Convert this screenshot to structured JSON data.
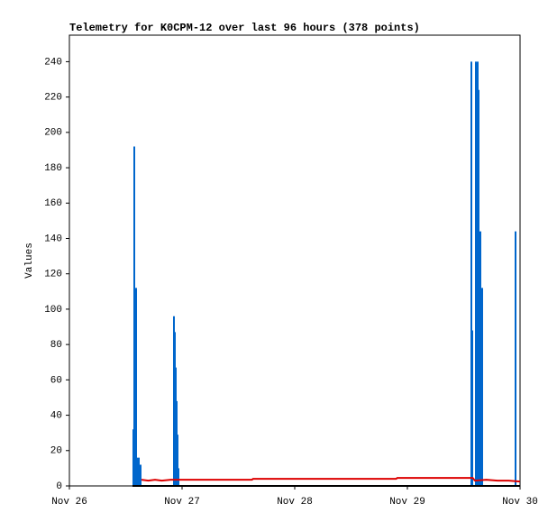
{
  "chart_data": {
    "type": "stem",
    "title": "Telemetry for K0CPM-12 over last 96 hours (378 points)",
    "y_label": "Values",
    "xlim": [
      26,
      30
    ],
    "xticks": [
      {
        "value": 26,
        "label": "Nov 26"
      },
      {
        "value": 27,
        "label": "Nov 27"
      },
      {
        "value": 28,
        "label": "Nov 28"
      },
      {
        "value": 29,
        "label": "Nov 29"
      },
      {
        "value": 30,
        "label": "Nov 30"
      }
    ],
    "ylim": [
      0,
      255
    ],
    "yticks": [
      0,
      20,
      40,
      60,
      80,
      100,
      120,
      140,
      160,
      180,
      200,
      220,
      240
    ],
    "series": [
      {
        "type": "stem",
        "color": "#0066cc",
        "x": [
          26.568,
          26.576,
          26.584,
          26.592,
          26.6,
          26.616,
          26.632,
          26.928,
          26.936,
          26.944,
          26.952,
          26.96,
          26.968,
          29.568,
          29.576,
          29.608,
          29.616,
          29.624,
          29.632,
          29.648,
          29.664,
          29.96
        ],
        "values": [
          32,
          192,
          32,
          112,
          16,
          16,
          12,
          96,
          87,
          67,
          48,
          29,
          10,
          240,
          88,
          240,
          120,
          240,
          224,
          144,
          112,
          144
        ]
      },
      {
        "type": "line",
        "color": "#dd0000",
        "x": [
          26.64,
          26.7,
          26.76,
          26.82,
          26.9,
          27.0,
          27.62,
          27.63,
          28.9,
          28.91,
          29.58,
          29.6,
          29.7,
          29.8,
          29.9,
          30.0
        ],
        "values": [
          3.5,
          3,
          3.5,
          3,
          3.5,
          3.5,
          3.5,
          4,
          4,
          4.5,
          4.5,
          3,
          3.5,
          3,
          3,
          2.5
        ]
      },
      {
        "type": "line",
        "color": "#000000",
        "x": [
          26.56,
          30.0
        ],
        "values": [
          0,
          0
        ]
      }
    ]
  }
}
